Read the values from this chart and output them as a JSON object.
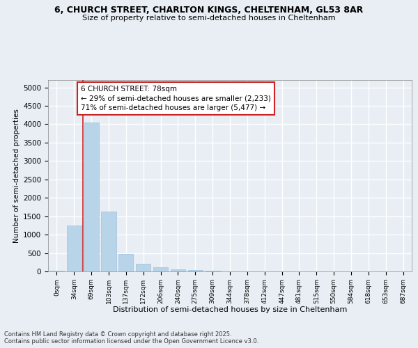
{
  "title_line1": "6, CHURCH STREET, CHARLTON KINGS, CHELTENHAM, GL53 8AR",
  "title_line2": "Size of property relative to semi-detached houses in Cheltenham",
  "xlabel": "Distribution of semi-detached houses by size in Cheltenham",
  "ylabel": "Number of semi-detached properties",
  "categories": [
    "0sqm",
    "34sqm",
    "69sqm",
    "103sqm",
    "137sqm",
    "172sqm",
    "206sqm",
    "240sqm",
    "275sqm",
    "309sqm",
    "344sqm",
    "378sqm",
    "412sqm",
    "447sqm",
    "481sqm",
    "515sqm",
    "550sqm",
    "584sqm",
    "618sqm",
    "653sqm",
    "687sqm"
  ],
  "values": [
    10,
    1250,
    4050,
    1620,
    480,
    215,
    110,
    60,
    30,
    10,
    5,
    2,
    1,
    0,
    0,
    0,
    0,
    0,
    0,
    0,
    0
  ],
  "bar_color": "#b8d4e8",
  "bar_edge_color": "#a0c0dc",
  "vline_color": "#cc2222",
  "vline_x": 1.5,
  "annotation_text": "6 CHURCH STREET: 78sqm\n← 29% of semi-detached houses are smaller (2,233)\n71% of semi-detached houses are larger (5,477) →",
  "annotation_box_color": "#cc2222",
  "annotation_bg_color": "#ffffff",
  "ylim": [
    0,
    5200
  ],
  "yticks": [
    0,
    500,
    1000,
    1500,
    2000,
    2500,
    3000,
    3500,
    4000,
    4500,
    5000
  ],
  "background_color": "#e8eef4",
  "grid_color": "#ffffff",
  "footer_line1": "Contains HM Land Registry data © Crown copyright and database right 2025.",
  "footer_line2": "Contains public sector information licensed under the Open Government Licence v3.0."
}
